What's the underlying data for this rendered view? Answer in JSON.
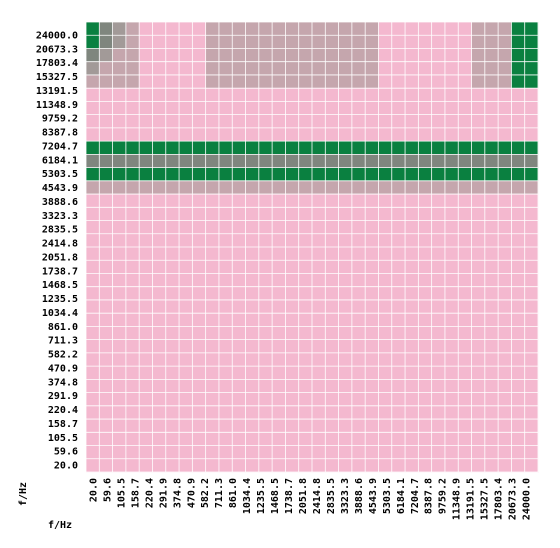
{
  "chart_data": {
    "type": "heatmap",
    "xlabel": "f/Hz",
    "ylabel": "f/Hz",
    "tick_labels": [
      "20.0",
      "59.6",
      "105.5",
      "158.7",
      "220.4",
      "291.9",
      "374.8",
      "470.9",
      "582.2",
      "711.3",
      "861.0",
      "1034.4",
      "1235.5",
      "1468.5",
      "1738.7",
      "2051.8",
      "2414.8",
      "2835.5",
      "3323.3",
      "3888.6",
      "4543.9",
      "5303.5",
      "6184.1",
      "7204.7",
      "8387.8",
      "9759.2",
      "11348.9",
      "13191.5",
      "15327.5",
      "17803.4",
      "20673.3",
      "24000.0"
    ],
    "grid": true,
    "colors": {
      "pink": "#f4b8cf",
      "green": "#0a8040",
      "gray": "#8a8a86",
      "grid": "#ffffff"
    },
    "cell_level_legend": [
      "pink",
      "light gray",
      "mid gray",
      "dark gray",
      "green"
    ],
    "levels": [
      "4321000001111111111111000000011144",
      "4321000001111111111111000000011144",
      "3211000001111111111111000000011144",
      "2111000001111111111111000000011144",
      "1111000001111111111111000000011144",
      "0000000000000000000000000000000000",
      "0000000000000000000000000000000000",
      "0000000000000000000000000000000000",
      "0000000000000000000000000000000000",
      "4444444444444444444444444444444444",
      "3333333333333333333333333333333333",
      "4444444444444444444444444444444444",
      "1111111111111111111111111111111111",
      "0000000000000000000000000000000000",
      "0000000000000000000000000000000000",
      "0000000000000000000000000000000000",
      "0000000000000000000000000000000000",
      "0000000000000000000000000000000000",
      "0000000000000000000000000000000000",
      "0000000000000000000000000000000000",
      "0000000000000000000000000000000000",
      "0000000000000000000000000000000000",
      "0000000000000000000000000000000000",
      "0000000000000000000000000000000000",
      "0000000000000000000000000000000000",
      "0000000000000000000000000000000000",
      "0000000000000000000000000000000000",
      "0000000000000000000000000000000000",
      "0000000000000000000000000000000000",
      "0000000000000000000000000000000000",
      "0000000000000000000000000000000000",
      "0000000000000000000000000000000000",
      "0000000000000000000000000000000000",
      "0000000000000000000000000000000000"
    ]
  }
}
